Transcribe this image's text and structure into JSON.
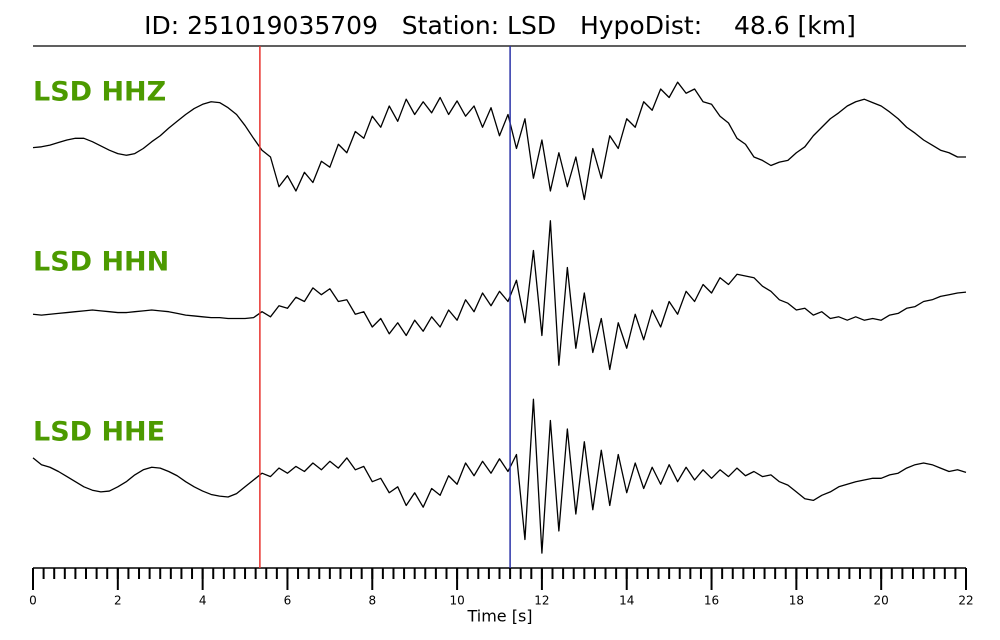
{
  "chart_data": {
    "type": "line",
    "title": "ID: 251019035709   Station: LSD   HypoDist:    48.6 [km]",
    "xlabel": "Time [s]",
    "xlim": [
      0,
      22
    ],
    "xticks": [
      0,
      2,
      4,
      6,
      8,
      10,
      12,
      14,
      16,
      18,
      20,
      22
    ],
    "xminorticks": [
      0,
      0.25,
      0.5,
      0.75,
      1,
      1.25,
      1.5,
      1.75,
      2,
      2.25,
      2.5,
      2.75,
      3,
      3.25,
      3.5,
      3.75,
      4,
      4.25,
      4.5,
      4.75,
      5,
      5.25,
      5.5,
      5.75,
      6,
      6.25,
      6.5,
      6.75,
      7,
      7.25,
      7.5,
      7.75,
      8,
      8.25,
      8.5,
      8.75,
      9,
      9.25,
      9.5,
      9.75,
      10,
      10.25,
      10.5,
      10.75,
      11,
      11.25,
      11.5,
      11.75,
      12,
      12.25,
      12.5,
      12.75,
      13,
      13.25,
      13.5,
      13.75,
      14,
      14.25,
      14.5,
      14.75,
      15,
      15.25,
      15.5,
      15.75,
      16,
      16.25,
      16.5,
      16.75,
      17,
      17.25,
      17.5,
      17.75,
      18,
      18.25,
      18.5,
      18.75,
      19,
      19.25,
      19.5,
      19.75,
      20,
      20.25,
      20.5,
      20.75,
      21,
      21.25,
      21.5,
      21.75,
      22
    ],
    "ylim": [
      -1,
      1
    ],
    "label_color": "#4c9a00",
    "markers": [
      {
        "x": 5.35,
        "color": "#e8322d"
      },
      {
        "x": 11.25,
        "color": "#2b33a8"
      }
    ],
    "x": [
      0,
      0.2,
      0.4,
      0.6,
      0.8,
      1,
      1.2,
      1.4,
      1.6,
      1.8,
      2,
      2.2,
      2.4,
      2.6,
      2.8,
      3,
      3.2,
      3.4,
      3.6,
      3.8,
      4,
      4.2,
      4.4,
      4.6,
      4.8,
      5,
      5.2,
      5.4,
      5.6,
      5.8,
      6,
      6.2,
      6.4,
      6.6,
      6.8,
      7,
      7.2,
      7.4,
      7.6,
      7.8,
      8,
      8.2,
      8.4,
      8.6,
      8.8,
      9,
      9.2,
      9.4,
      9.6,
      9.8,
      10,
      10.2,
      10.4,
      10.6,
      10.8,
      11,
      11.2,
      11.4,
      11.6,
      11.8,
      12,
      12.2,
      12.4,
      12.6,
      12.8,
      13,
      13.2,
      13.4,
      13.6,
      13.8,
      14,
      14.2,
      14.4,
      14.6,
      14.8,
      15,
      15.2,
      15.4,
      15.6,
      15.8,
      16,
      16.2,
      16.4,
      16.6,
      16.8,
      17,
      17.2,
      17.4,
      17.6,
      17.8,
      18,
      18.2,
      18.4,
      18.6,
      18.8,
      19,
      19.2,
      19.4,
      19.6,
      19.8,
      20,
      20.2,
      20.4,
      20.6,
      20.8,
      21,
      21.2,
      21.4,
      21.6,
      21.8,
      22
    ],
    "series": [
      {
        "name": "LSD HHZ",
        "color": "#000000",
        "values": [
          -0.09,
          -0.08,
          -0.06,
          -0.03,
          0.0,
          0.02,
          0.02,
          -0.02,
          -0.07,
          -0.12,
          -0.16,
          -0.18,
          -0.16,
          -0.1,
          -0.02,
          0.05,
          0.14,
          0.22,
          0.3,
          0.37,
          0.42,
          0.45,
          0.44,
          0.38,
          0.3,
          0.17,
          0.02,
          -0.12,
          -0.2,
          -0.55,
          -0.42,
          -0.6,
          -0.38,
          -0.5,
          -0.25,
          -0.32,
          -0.05,
          -0.15,
          0.1,
          0.02,
          0.28,
          0.15,
          0.4,
          0.22,
          0.48,
          0.3,
          0.45,
          0.32,
          0.5,
          0.3,
          0.46,
          0.28,
          0.4,
          0.15,
          0.38,
          0.05,
          0.3,
          -0.1,
          0.25,
          -0.45,
          0.0,
          -0.6,
          -0.15,
          -0.55,
          -0.2,
          -0.7,
          -0.1,
          -0.45,
          0.05,
          -0.1,
          0.25,
          0.15,
          0.45,
          0.35,
          0.6,
          0.5,
          0.68,
          0.55,
          0.6,
          0.45,
          0.42,
          0.28,
          0.2,
          0.02,
          -0.05,
          -0.2,
          -0.24,
          -0.3,
          -0.26,
          -0.24,
          -0.15,
          -0.08,
          0.05,
          0.15,
          0.25,
          0.32,
          0.4,
          0.45,
          0.48,
          0.44,
          0.4,
          0.33,
          0.25,
          0.15,
          0.08,
          0.0,
          -0.06,
          -0.12,
          -0.15,
          -0.2,
          -0.2
        ]
      },
      {
        "name": "LSD HHN",
        "color": "#000000",
        "values": [
          -0.05,
          -0.06,
          -0.05,
          -0.04,
          -0.03,
          -0.02,
          -0.01,
          0.0,
          -0.01,
          -0.02,
          -0.03,
          -0.03,
          -0.02,
          -0.01,
          0.0,
          -0.01,
          -0.02,
          -0.04,
          -0.06,
          -0.07,
          -0.08,
          -0.09,
          -0.09,
          -0.1,
          -0.1,
          -0.1,
          -0.09,
          -0.02,
          -0.08,
          0.05,
          0.02,
          0.15,
          0.1,
          0.26,
          0.18,
          0.25,
          0.1,
          0.12,
          -0.05,
          -0.02,
          -0.2,
          -0.1,
          -0.28,
          -0.15,
          -0.3,
          -0.12,
          -0.25,
          -0.08,
          -0.2,
          0.0,
          -0.12,
          0.12,
          -0.02,
          0.2,
          0.05,
          0.22,
          0.1,
          0.35,
          -0.15,
          0.7,
          -0.3,
          1.05,
          -0.65,
          0.5,
          -0.45,
          0.2,
          -0.5,
          -0.1,
          -0.7,
          -0.15,
          -0.45,
          -0.05,
          -0.35,
          0.0,
          -0.2,
          0.1,
          -0.05,
          0.22,
          0.1,
          0.3,
          0.2,
          0.38,
          0.3,
          0.42,
          0.4,
          0.38,
          0.28,
          0.22,
          0.12,
          0.08,
          0.0,
          0.02,
          -0.06,
          -0.02,
          -0.1,
          -0.08,
          -0.12,
          -0.08,
          -0.12,
          -0.1,
          -0.12,
          -0.06,
          -0.04,
          0.02,
          0.04,
          0.1,
          0.12,
          0.16,
          0.18,
          0.2,
          0.21
        ]
      },
      {
        "name": "LSD HHE",
        "color": "#000000",
        "values": [
          0.26,
          0.18,
          0.15,
          0.1,
          0.04,
          -0.02,
          -0.08,
          -0.12,
          -0.14,
          -0.13,
          -0.08,
          -0.02,
          0.06,
          0.12,
          0.15,
          0.14,
          0.1,
          0.05,
          -0.02,
          -0.08,
          -0.13,
          -0.17,
          -0.19,
          -0.2,
          -0.16,
          -0.08,
          0.0,
          0.08,
          0.04,
          0.14,
          0.08,
          0.16,
          0.1,
          0.2,
          0.12,
          0.22,
          0.14,
          0.26,
          0.12,
          0.16,
          -0.02,
          0.02,
          -0.15,
          -0.08,
          -0.3,
          -0.15,
          -0.32,
          -0.1,
          -0.18,
          0.05,
          -0.05,
          0.2,
          0.05,
          0.22,
          0.08,
          0.25,
          0.1,
          0.3,
          -0.7,
          0.95,
          -0.86,
          0.7,
          -0.6,
          0.6,
          -0.4,
          0.45,
          -0.35,
          0.35,
          -0.3,
          0.3,
          -0.15,
          0.2,
          -0.1,
          0.15,
          -0.05,
          0.18,
          -0.02,
          0.15,
          0.0,
          0.12,
          0.02,
          0.12,
          0.04,
          0.14,
          0.05,
          0.1,
          0.04,
          0.06,
          -0.02,
          -0.06,
          -0.14,
          -0.22,
          -0.24,
          -0.18,
          -0.14,
          -0.08,
          -0.05,
          -0.02,
          0.0,
          0.02,
          0.02,
          0.06,
          0.08,
          0.14,
          0.18,
          0.2,
          0.18,
          0.14,
          0.1,
          0.12,
          0.09
        ]
      }
    ]
  }
}
